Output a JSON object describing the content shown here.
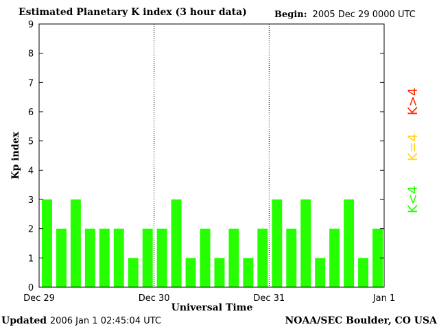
{
  "header": {
    "title": "Estimated Planetary K index (3 hour data)",
    "begin_label": "Begin:",
    "begin_value": "2005 Dec 29 0000 UTC"
  },
  "footer": {
    "updated_label": "Updated",
    "updated_value": "2006 Jan  1 02:45:04 UTC",
    "credit": "NOAA/SEC Boulder, CO USA"
  },
  "legend": [
    {
      "label": "K>4",
      "color": "#ff2a00"
    },
    {
      "label": "K=4",
      "color": "#ffd21f"
    },
    {
      "label": "K<4",
      "color": "#26ff00"
    }
  ],
  "chart_data": {
    "type": "bar",
    "title": "Estimated Planetary K index (3 hour data)",
    "xlabel": "Universal Time",
    "ylabel": "Kp index",
    "ylim": [
      0,
      9
    ],
    "yticks": [
      0,
      1,
      2,
      3,
      4,
      5,
      6,
      7,
      8,
      9
    ],
    "xtick_labels": [
      "Dec 29",
      "Dec 30",
      "Dec 31",
      "Jan 1"
    ],
    "day_dividers": "dotted",
    "bar_color": "#26ff00",
    "values": [
      3,
      2,
      3,
      2,
      2,
      2,
      1,
      2,
      2,
      3,
      1,
      2,
      1,
      2,
      1,
      2,
      3,
      2,
      3,
      1,
      2,
      3,
      1,
      2
    ]
  }
}
